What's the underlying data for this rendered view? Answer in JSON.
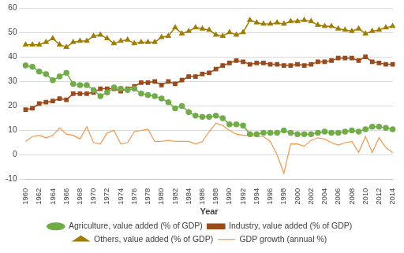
{
  "chart_data": {
    "type": "line",
    "x_label": "Year",
    "categories": [
      "1960",
      null,
      "1962",
      null,
      "1964",
      null,
      "1966",
      null,
      "1968",
      null,
      "1970",
      null,
      "1972",
      null,
      "1974",
      null,
      "1976",
      null,
      "1978",
      null,
      "1980",
      null,
      "1982",
      null,
      "1984",
      null,
      "1986",
      null,
      "1988",
      null,
      "1990",
      null,
      "1992",
      null,
      "1994",
      null,
      "1996",
      null,
      "1998",
      null,
      "2000",
      null,
      "2002",
      null,
      "2004",
      null,
      "2006",
      null,
      "2008",
      null,
      "2010",
      null,
      "2012",
      null,
      "2014"
    ],
    "series": [
      {
        "name": "Agriculture, value added (% of GDP)",
        "color": "#70ad47",
        "marker": "circle",
        "values": [
          36.5,
          36,
          34,
          33,
          30.5,
          32,
          33.5,
          29,
          28.5,
          28.5,
          26.5,
          24,
          25.5,
          27.5,
          27,
          26.5,
          27,
          25,
          24.5,
          24,
          23,
          21.5,
          19,
          20,
          17.5,
          16,
          15.5,
          15.5,
          16,
          15,
          12.5,
          12.5,
          12,
          8.5,
          8.5,
          9,
          9,
          9,
          10,
          9,
          8.5,
          8.5,
          8.5,
          9,
          9.5,
          9,
          9,
          9.5,
          10,
          9.5,
          10.5,
          11.5,
          11.5,
          11,
          10.5
        ]
      },
      {
        "name": "Industry, value added (% of GDP)",
        "color": "#9c4a1a",
        "marker": "square",
        "values": [
          18.5,
          19,
          21,
          21.5,
          22,
          23,
          22.5,
          25,
          25,
          25,
          25.5,
          27,
          27,
          27,
          26,
          27,
          28,
          29.5,
          29.5,
          30,
          28.5,
          30,
          29,
          30.5,
          32,
          32,
          33,
          33.5,
          35,
          36.5,
          37.5,
          38.5,
          38,
          37,
          37.5,
          37.5,
          37,
          37,
          36.5,
          36.5,
          37,
          36.5,
          37,
          38,
          38,
          38.5,
          39.5,
          39.5,
          39.5,
          38.5,
          40,
          38,
          37.5,
          37,
          37
        ]
      },
      {
        "name": "Others, value added (% of GDP)",
        "color": "#a07d00",
        "marker": "triangle",
        "values": [
          45,
          45,
          45,
          46,
          47.5,
          45,
          44,
          46,
          46.5,
          46.5,
          48.5,
          49,
          47.5,
          45.5,
          46.5,
          47,
          45.5,
          46,
          46,
          46,
          48,
          48.5,
          52,
          49.5,
          50.5,
          52,
          51.5,
          51,
          49,
          48.5,
          50,
          49,
          50,
          55,
          54,
          53.5,
          53.5,
          54,
          53.5,
          54.5,
          54.5,
          55,
          54.5,
          53,
          52.5,
          52.5,
          51.5,
          51,
          50.5,
          51.5,
          49.5,
          50.5,
          51,
          52,
          52.5
        ]
      },
      {
        "name": "GDP growth (annual %)",
        "color": "#f79646",
        "marker": "none",
        "values": [
          5.5,
          7.5,
          8,
          7,
          8,
          11,
          8.5,
          8,
          6.5,
          11.5,
          5,
          4.5,
          9,
          10,
          4.5,
          5,
          9.5,
          10,
          10.5,
          5.5,
          5.5,
          6,
          5.5,
          5.5,
          5.5,
          4.5,
          5.5,
          9.5,
          13,
          12,
          10,
          8.5,
          8,
          8,
          7.5,
          7.5,
          5.5,
          0,
          -7.5,
          4.5,
          4.5,
          3.5,
          6,
          7,
          6.5,
          5,
          4,
          5,
          5.5,
          1,
          7.5,
          1,
          7,
          3,
          1
        ]
      }
    ],
    "ylim": [
      -10,
      60
    ],
    "yticks": [
      -10,
      0,
      10,
      20,
      30,
      40,
      50,
      60
    ],
    "grid": true,
    "legend": "bottom"
  }
}
